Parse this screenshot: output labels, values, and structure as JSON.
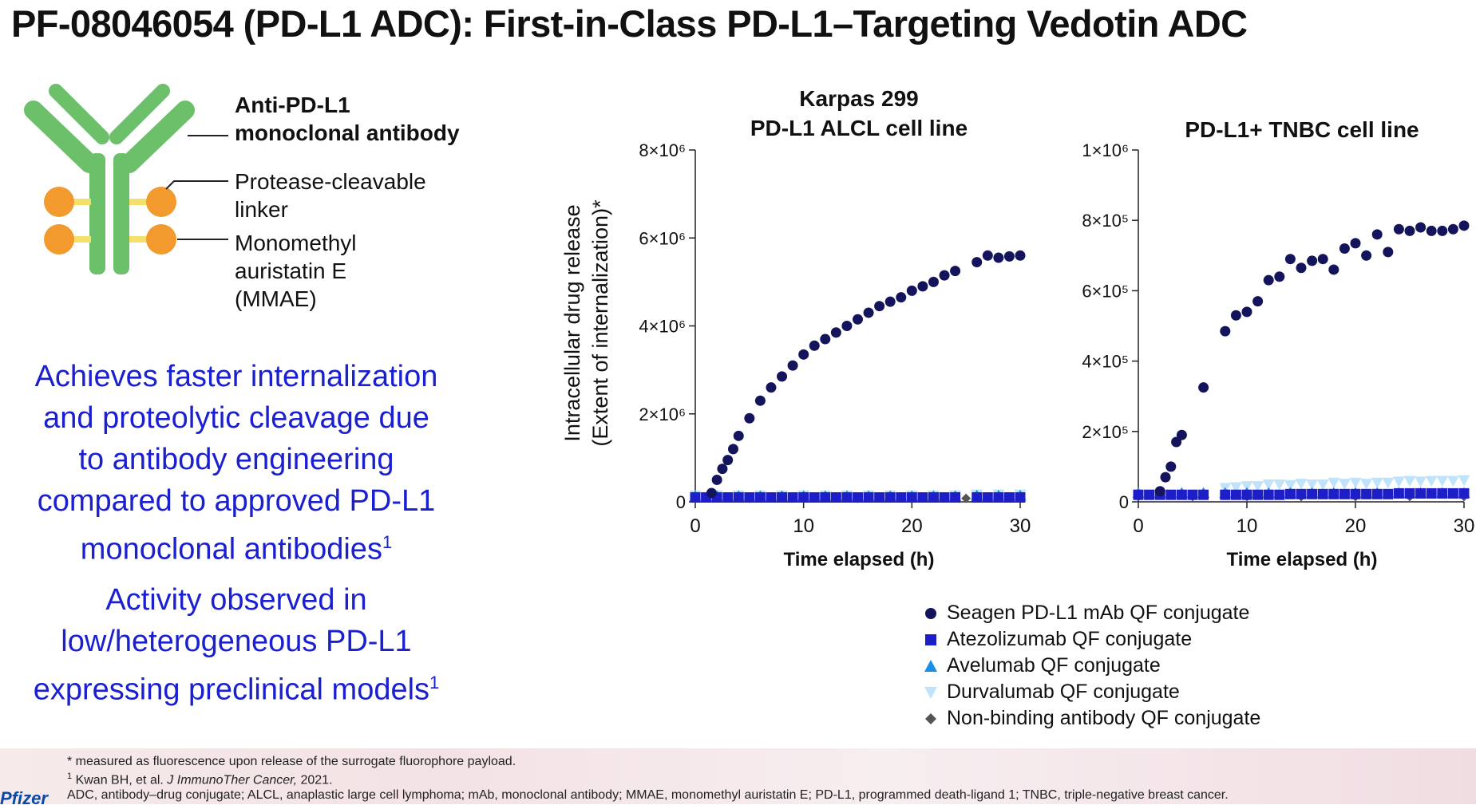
{
  "title": "PF-08046054 (PD-L1 ADC): First-in-Class PD-L1–Targeting Vedotin ADC",
  "antibody_diagram": {
    "label_line1": "Anti-PD-L1",
    "label_line2": "monoclonal antibody",
    "linker_line1": "Protease-cleavable",
    "linker_line2": "linker",
    "payload_line1": "Monomethyl",
    "payload_line2": "auristatin E",
    "payload_line3": "(MMAE)",
    "colors": {
      "antibody": "#6cc06a",
      "linker": "#f5e06a",
      "payload": "#f39a2e"
    }
  },
  "claims": {
    "claim1_line1": "Achieves faster internalization",
    "claim1_line2": "and proteolytic cleavage due",
    "claim1_line3": "to antibody engineering",
    "claim1_line4": "compared to approved PD-L1",
    "claim1_line5": "monoclonal antibodies",
    "claim1_ref": "1",
    "claim2_line1": "Activity observed in",
    "claim2_line2": "low/heterogeneous PD-L1",
    "claim2_line3": "expressing preclinical models",
    "claim2_ref": "1"
  },
  "shared_ylabel_line1": "Intracellular drug release",
  "shared_ylabel_line2": "(Extent of internalization)*",
  "chart_data": [
    {
      "type": "scatter",
      "title_line1": "Karpas 299",
      "title_line2": "PD-L1 ALCL cell line",
      "xlabel": "Time elapsed (h)",
      "xlim": [
        0,
        30
      ],
      "ylim": [
        0,
        8000000
      ],
      "xticks": [
        0,
        10,
        20,
        30
      ],
      "yticks": [
        0,
        2000000,
        4000000,
        6000000,
        8000000
      ],
      "ytick_labels": [
        "0",
        "2×10⁶",
        "4×10⁶",
        "6×10⁶",
        "8×10⁶"
      ],
      "series": [
        {
          "name": "Seagen PD-L1 mAb QF conjugate",
          "marker": "circle",
          "color": "#14145c",
          "x": [
            1.5,
            2.0,
            2.5,
            3.0,
            3.5,
            4.0,
            5.0,
            6.0,
            7.0,
            8.0,
            9.0,
            10.0,
            11.0,
            12.0,
            13.0,
            14.0,
            15.0,
            16.0,
            17.0,
            18.0,
            19.0,
            20.0,
            21.0,
            22.0,
            23.0,
            24.0,
            26.0,
            27.0,
            28.0,
            29.0,
            30.0
          ],
          "y": [
            200000,
            500000,
            750000,
            950000,
            1200000,
            1500000,
            1900000,
            2300000,
            2600000,
            2850000,
            3100000,
            3350000,
            3550000,
            3700000,
            3850000,
            4000000,
            4150000,
            4300000,
            4450000,
            4550000,
            4650000,
            4800000,
            4900000,
            5000000,
            5150000,
            5250000,
            5450000,
            5600000,
            5550000,
            5580000,
            5600000
          ]
        },
        {
          "name": "Atezolizumab QF conjugate",
          "marker": "square",
          "color": "#1e1ec8",
          "x": [
            0,
            1,
            2,
            3,
            4,
            5,
            6,
            7,
            8,
            9,
            10,
            11,
            12,
            13,
            14,
            15,
            16,
            17,
            18,
            19,
            20,
            21,
            22,
            23,
            24,
            26,
            27,
            28,
            29,
            30
          ],
          "y": [
            100000,
            100000,
            100000,
            100000,
            100000,
            100000,
            100000,
            100000,
            100000,
            100000,
            100000,
            100000,
            100000,
            100000,
            100000,
            100000,
            100000,
            100000,
            100000,
            100000,
            100000,
            100000,
            100000,
            100000,
            100000,
            100000,
            100000,
            100000,
            100000,
            100000
          ]
        },
        {
          "name": "Avelumab QF conjugate",
          "marker": "triangle-up",
          "color": "#1a8fe8",
          "x": [
            0,
            2,
            4,
            6,
            8,
            10,
            12,
            14,
            16,
            18,
            20,
            22,
            24,
            26,
            28,
            30
          ],
          "y": [
            130000,
            130000,
            130000,
            130000,
            130000,
            130000,
            130000,
            130000,
            130000,
            130000,
            130000,
            130000,
            130000,
            140000,
            140000,
            140000
          ]
        },
        {
          "name": "Durvalumab QF conjugate",
          "marker": "triangle-down",
          "color": "#bfe3fb",
          "x": [
            0,
            2,
            4,
            6,
            8,
            10,
            12,
            14,
            16,
            18,
            20,
            22,
            24,
            26,
            28,
            30
          ],
          "y": [
            150000,
            150000,
            150000,
            150000,
            150000,
            150000,
            150000,
            150000,
            150000,
            150000,
            150000,
            150000,
            150000,
            170000,
            170000,
            170000
          ]
        },
        {
          "name": "Non-binding antibody QF conjugate",
          "marker": "diamond",
          "color": "#555555",
          "x": [
            0,
            5,
            10,
            15,
            20,
            25,
            30
          ],
          "y": [
            80000,
            80000,
            80000,
            80000,
            80000,
            80000,
            80000
          ]
        }
      ]
    },
    {
      "type": "scatter",
      "title_line1": "",
      "title_line2": "PD-L1+ TNBC cell line",
      "xlabel": "Time elapsed (h)",
      "xlim": [
        0,
        30
      ],
      "ylim": [
        0,
        1000000
      ],
      "xticks": [
        0,
        10,
        20,
        30
      ],
      "yticks": [
        0,
        200000,
        400000,
        600000,
        800000,
        1000000
      ],
      "ytick_labels": [
        "0",
        "2×10⁵",
        "4×10⁵",
        "6×10⁵",
        "8×10⁵",
        "1×10⁶"
      ],
      "series": [
        {
          "name": "Seagen PD-L1 mAb QF conjugate",
          "marker": "circle",
          "color": "#14145c",
          "x": [
            2.0,
            2.5,
            3.0,
            3.5,
            4.0,
            6.0,
            8.0,
            9.0,
            10.0,
            11.0,
            12.0,
            13.0,
            14.0,
            15.0,
            16.0,
            17.0,
            18.0,
            19.0,
            20.0,
            21.0,
            22.0,
            23.0,
            24.0,
            25.0,
            26.0,
            27.0,
            28.0,
            29.0,
            30.0
          ],
          "y": [
            30000,
            70000,
            100000,
            170000,
            190000,
            325000,
            485000,
            530000,
            540000,
            570000,
            630000,
            640000,
            690000,
            665000,
            685000,
            690000,
            660000,
            720000,
            735000,
            700000,
            760000,
            710000,
            775000,
            770000,
            780000,
            770000,
            770000,
            775000,
            785000
          ]
        },
        {
          "name": "Atezolizumab QF conjugate",
          "marker": "square",
          "color": "#1e1ec8",
          "x": [
            0,
            1,
            2,
            3,
            4,
            5,
            6,
            8,
            9,
            10,
            11,
            12,
            13,
            14,
            15,
            16,
            17,
            18,
            19,
            20,
            21,
            22,
            23,
            24,
            25,
            26,
            27,
            28,
            29,
            30
          ],
          "y": [
            20000,
            20000,
            20000,
            20000,
            20000,
            20000,
            20000,
            20000,
            20000,
            20000,
            20000,
            20000,
            20000,
            22000,
            22000,
            22000,
            22000,
            22000,
            22000,
            22000,
            22000,
            22000,
            22000,
            24000,
            24000,
            24000,
            24000,
            24000,
            24000,
            24000
          ]
        },
        {
          "name": "Avelumab QF conjugate",
          "marker": "triangle-up",
          "color": "#1a8fe8",
          "x": [
            0,
            2,
            4,
            6,
            8,
            10,
            12,
            14,
            16,
            18,
            20,
            22,
            24,
            26,
            28,
            30
          ],
          "y": [
            25000,
            25000,
            25000,
            25000,
            25000,
            25000,
            25000,
            25000,
            25000,
            25000,
            25000,
            25000,
            25000,
            25000,
            25000,
            25000
          ]
        },
        {
          "name": "Durvalumab QF conjugate",
          "marker": "triangle-down",
          "color": "#bfe3fb",
          "x": [
            8,
            9,
            10,
            11,
            12,
            13,
            14,
            15,
            16,
            17,
            18,
            19,
            20,
            21,
            22,
            23,
            24,
            25,
            26,
            27,
            28,
            29,
            30
          ],
          "y": [
            40000,
            42000,
            45000,
            45000,
            50000,
            50000,
            48000,
            52000,
            50000,
            50000,
            55000,
            52000,
            55000,
            52000,
            55000,
            55000,
            58000,
            60000,
            58000,
            60000,
            60000,
            60000,
            62000
          ]
        },
        {
          "name": "Non-binding antibody QF conjugate",
          "marker": "diamond",
          "color": "#555555",
          "x": [
            0,
            5,
            10,
            15,
            20,
            25,
            30
          ],
          "y": [
            15000,
            15000,
            15000,
            15000,
            15000,
            15000,
            15000
          ]
        }
      ]
    }
  ],
  "legend": [
    {
      "label": "Seagen PD-L1 mAb QF conjugate",
      "marker": "circle",
      "color": "#14145c"
    },
    {
      "label": "Atezolizumab QF conjugate",
      "marker": "square",
      "color": "#1e1ec8"
    },
    {
      "label": "Avelumab QF conjugate",
      "marker": "triangle-up",
      "color": "#1a8fe8"
    },
    {
      "label": "Durvalumab QF conjugate",
      "marker": "triangle-down",
      "color": "#bfe3fb"
    },
    {
      "label": "Non-binding antibody QF conjugate",
      "marker": "diamond",
      "color": "#555555"
    }
  ],
  "footnotes": {
    "fn1": "* measured as fluorescence upon release of the surrogate fluorophore payload.",
    "fn2_ref": "1",
    "fn2_authors": " Kwan BH, et al. ",
    "fn2_journal": "J ImmunoTher Cancer,",
    "fn2_year": " 2021.",
    "fn3": "ADC, antibody–drug conjugate; ALCL, anaplastic large cell lymphoma; mAb, monoclonal antibody; MMAE, monomethyl auristatin E; PD-L1, programmed death-ligand 1; TNBC, triple-negative breast cancer.",
    "logo_text": "Pfizer"
  }
}
